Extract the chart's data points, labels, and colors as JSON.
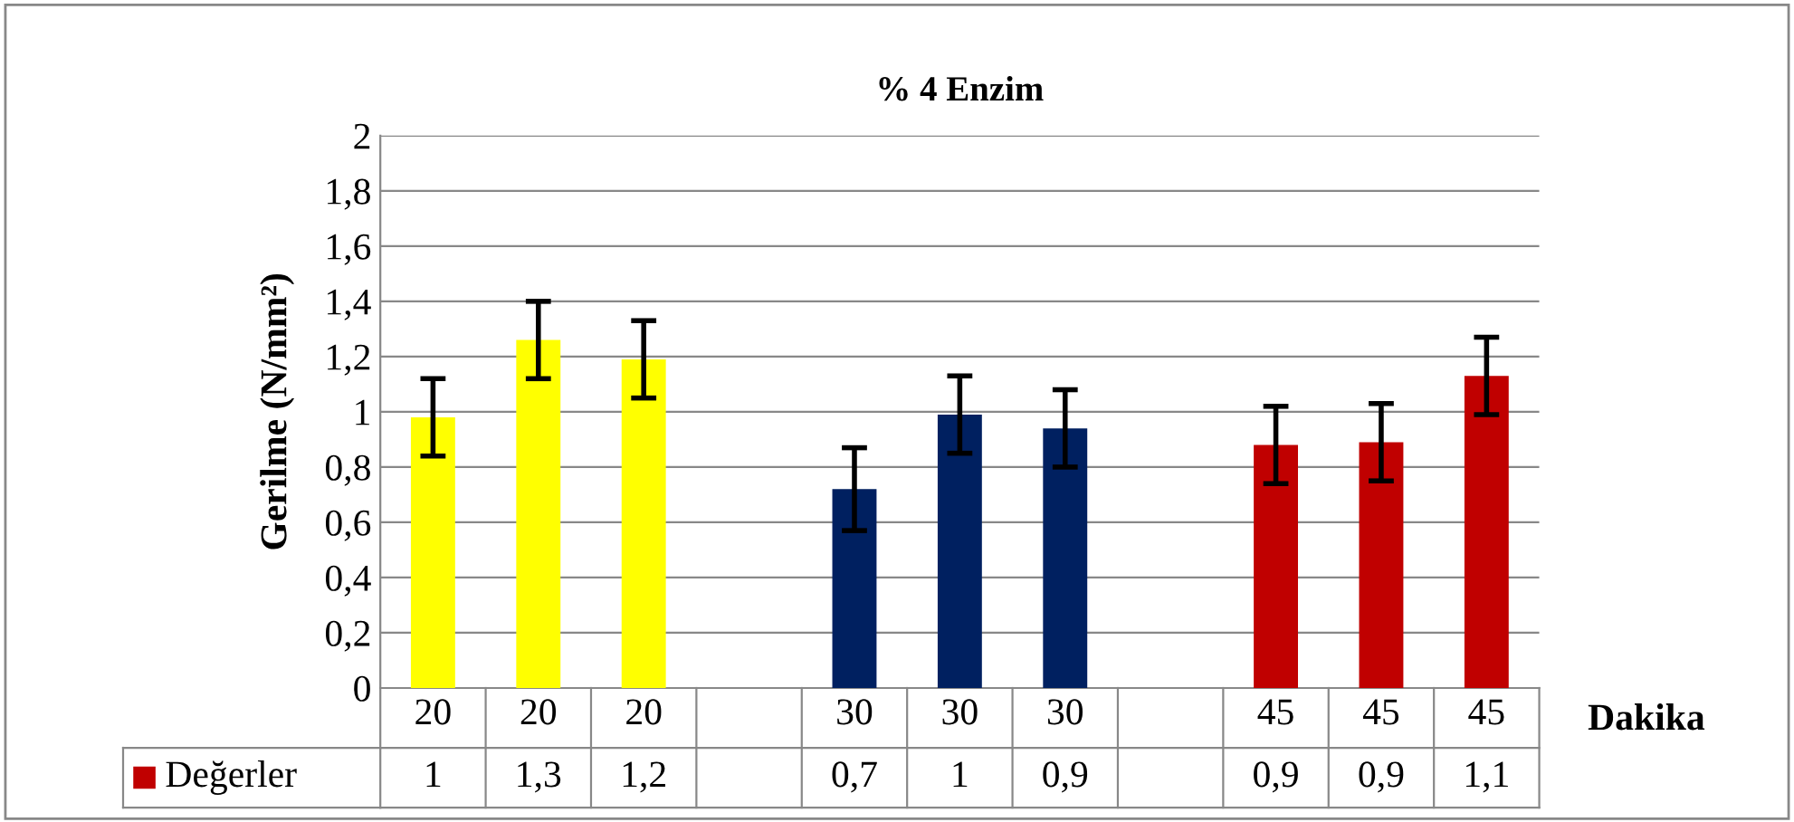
{
  "chart_data": {
    "type": "bar",
    "title": "% 4 Enzim",
    "xlabel": "Dakika",
    "ylabel": "Gerilme (N/mm²)",
    "categories": [
      "20",
      "20",
      "20",
      null,
      "30",
      "30",
      "30",
      null,
      "45",
      "45",
      "45"
    ],
    "series": [
      {
        "name": "Değerler",
        "color": "#c00000",
        "colors": [
          "#ffff00",
          "#ffff00",
          "#ffff00",
          "#ffffff",
          "#002060",
          "#002060",
          "#002060",
          "#ffffff",
          "#c00000",
          "#c00000",
          "#c00000"
        ],
        "values": [
          0.98,
          1.26,
          1.19,
          null,
          0.72,
          0.99,
          0.94,
          null,
          0.88,
          0.89,
          1.13
        ],
        "errors": [
          0.14,
          0.14,
          0.14,
          null,
          0.15,
          0.14,
          0.14,
          null,
          0.14,
          0.14,
          0.14
        ],
        "value_labels": [
          "1",
          "1,3",
          "1,2",
          null,
          "0,7",
          "1",
          "0,9",
          null,
          "0,9",
          "0,9",
          "1,1"
        ]
      }
    ],
    "ylim": [
      0,
      2
    ],
    "yticks": [
      0,
      {
        "value": 0.2,
        "label": "0,2"
      },
      {
        "value": 0.4,
        "label": "0,4"
      },
      {
        "value": 0.6,
        "label": "0,6"
      },
      {
        "value": 0.8,
        "label": "0,8"
      },
      1,
      {
        "value": 1.2,
        "label": "1,2"
      },
      {
        "value": 1.4,
        "label": "1,4"
      },
      {
        "value": 1.6,
        "label": "1,6"
      },
      {
        "value": 1.8,
        "label": "1,8"
      },
      2
    ],
    "grid": "y",
    "legend": "bottom left"
  }
}
